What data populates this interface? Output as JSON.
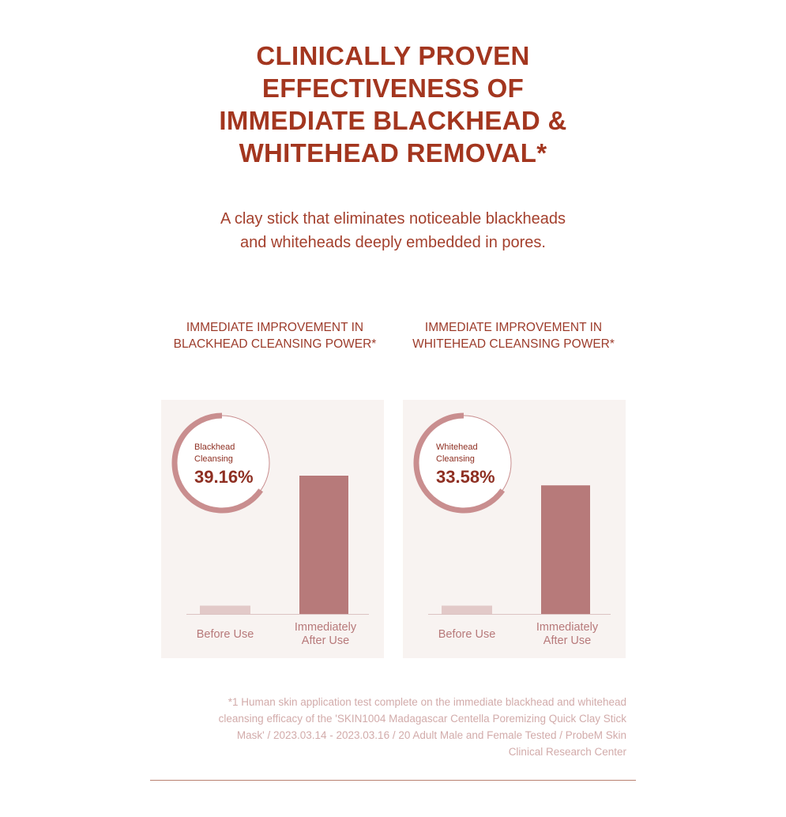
{
  "header": {
    "title_lines": [
      "CLINICALLY PROVEN",
      "EFFECTIVENESS OF",
      "IMMEDIATE BLACKHEAD &",
      "WHITEHEAD REMOVAL*"
    ],
    "subtitle_lines": [
      "A clay stick that eliminates noticeable blackheads",
      "and whiteheads deeply embedded in pores."
    ]
  },
  "colors": {
    "accent": "#a3361f",
    "bar_after": "#b77a7a",
    "bar_before": "#e2c9c8",
    "ring": "#c98e8f",
    "panel_bg": "#f8f3f1"
  },
  "chart_data": [
    {
      "type": "bar",
      "title_lines": [
        "IMMEDIATE IMPROVEMENT IN",
        "BLACKHEAD CLEANSING POWER*"
      ],
      "categories": [
        "Before Use",
        "Immediately After Use"
      ],
      "category_lines": [
        [
          "Before Use"
        ],
        [
          "Immediately",
          "After Use"
        ]
      ],
      "values_relative": [
        0.06,
        1.0
      ],
      "badge": {
        "label_lines": [
          "Blackhead",
          "Cleansing"
        ],
        "value": "39.16%"
      }
    },
    {
      "type": "bar",
      "title_lines": [
        "IMMEDIATE IMPROVEMENT IN",
        "WHITEHEAD CLEANSING POWER*"
      ],
      "categories": [
        "Before Use",
        "Immediately After Use"
      ],
      "category_lines": [
        [
          "Before Use"
        ],
        [
          "Immediately",
          "After Use"
        ]
      ],
      "values_relative": [
        0.06,
        0.93
      ],
      "badge": {
        "label_lines": [
          "Whitehead",
          "Cleansing"
        ],
        "value": "33.58%"
      }
    }
  ],
  "footnote": {
    "lines": [
      "*1 Human skin application test complete on the immediate blackhead and whitehead",
      "cleansing efficacy of the 'SKIN1004 Madagascar Centella Poremizing Quick Clay Stick",
      "Mask' / 2023.03.14 - 2023.03.16 / 20 Adult Male and Female Tested / ProbeM Skin",
      "Clinical Research Center"
    ]
  }
}
